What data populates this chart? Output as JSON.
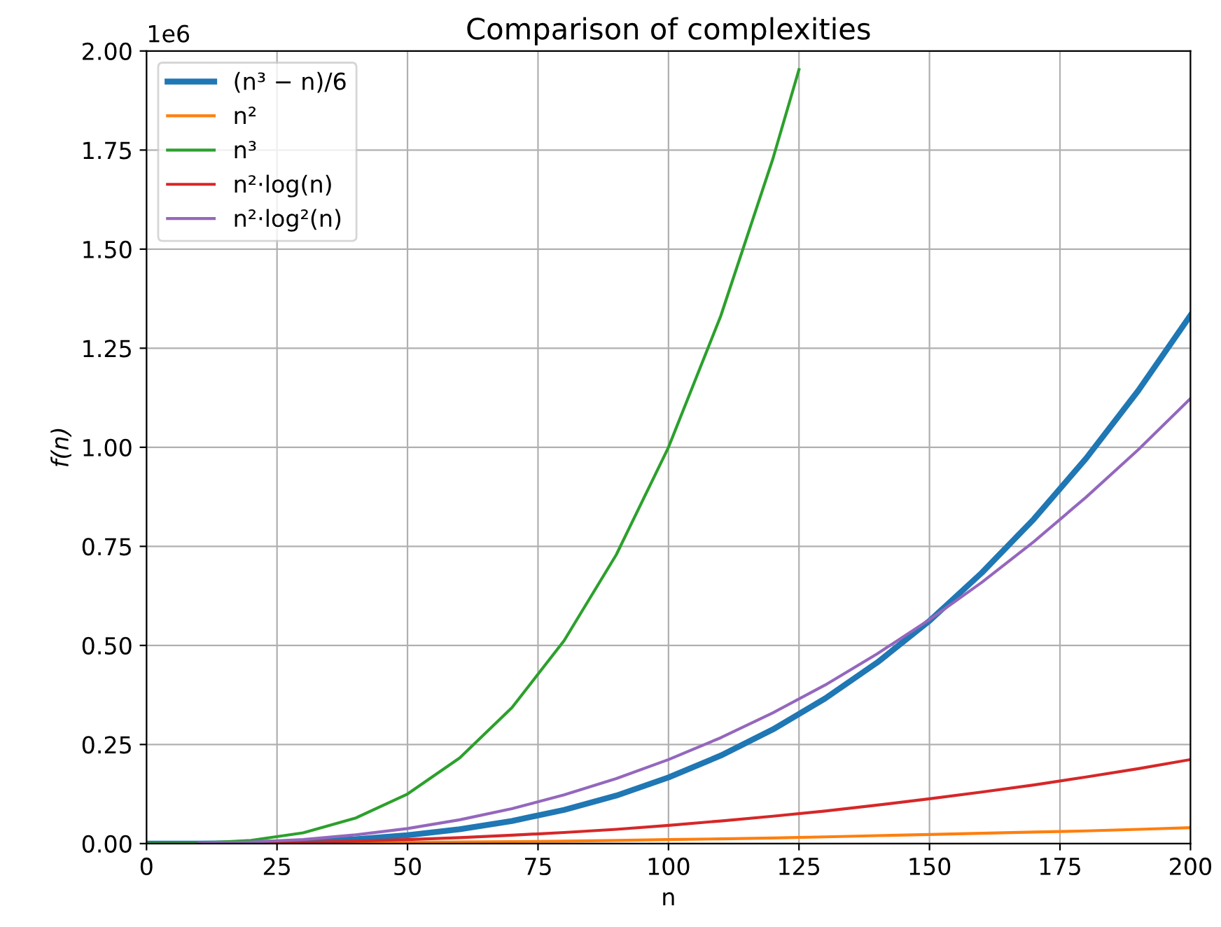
{
  "chart_data": {
    "type": "line",
    "title": "Comparison of complexities",
    "xlabel": "n",
    "ylabel": "f(n)",
    "annotations": [
      "1e6"
    ],
    "x": [
      0,
      10,
      20,
      30,
      40,
      50,
      60,
      70,
      80,
      90,
      100,
      110,
      120,
      130,
      140,
      150,
      160,
      170,
      180,
      190,
      200
    ],
    "series": [
      {
        "name": "(n³ − n)/6",
        "color": "#1f77b4",
        "values": [
          0,
          0.0,
          0.001,
          0.004,
          0.011,
          0.021,
          0.036,
          0.057,
          0.085,
          0.121,
          0.167,
          0.222,
          0.288,
          0.366,
          0.457,
          0.562,
          0.683,
          0.819,
          0.972,
          1.143,
          1.333
        ]
      },
      {
        "name": "n²",
        "color": "#ff7f0e",
        "values": [
          null,
          null,
          null,
          0.001,
          0.002,
          0.003,
          0.004,
          0.005,
          0.006,
          0.008,
          0.01,
          0.012,
          0.014,
          0.017,
          0.02,
          0.023,
          0.026,
          0.029,
          0.032,
          0.036,
          0.04
        ]
      },
      {
        "name": "n³",
        "color": "#2ca02c",
        "x": [
          0,
          10,
          20,
          30,
          40,
          50,
          60,
          70,
          80,
          90,
          100,
          110,
          120,
          125
        ],
        "values": [
          0,
          0.001,
          0.008,
          0.027,
          0.064,
          0.125,
          0.216,
          0.343,
          0.512,
          0.729,
          1.0,
          1.331,
          1.728,
          1.953
        ]
      },
      {
        "name": "n²·log(n)",
        "color": "#d62728",
        "values": [
          null,
          null,
          0.001,
          0.003,
          0.006,
          0.01,
          0.015,
          0.021,
          0.028,
          0.036,
          0.046,
          0.057,
          0.069,
          0.082,
          0.097,
          0.113,
          0.13,
          0.148,
          0.168,
          0.189,
          0.212
        ]
      },
      {
        "name": "n²·log²(n)",
        "color": "#9467bd",
        "values": [
          null,
          0.001,
          0.004,
          0.01,
          0.022,
          0.038,
          0.06,
          0.088,
          0.123,
          0.164,
          0.212,
          0.267,
          0.33,
          0.4,
          0.479,
          0.565,
          0.659,
          0.762,
          0.874,
          0.994,
          1.123
        ]
      }
    ],
    "xlim": [
      0,
      200
    ],
    "xticks": [
      0,
      25,
      50,
      75,
      100,
      125,
      150,
      175,
      200
    ],
    "ylim": [
      0,
      2
    ],
    "yticks": [
      {
        "value": 0,
        "label": "0.00"
      },
      {
        "value": 0.25,
        "label": "0.25"
      },
      {
        "value": 0.5,
        "label": "0.50"
      },
      {
        "value": 0.75,
        "label": "0.75"
      },
      {
        "value": 1,
        "label": "1.00"
      },
      {
        "value": 1.25,
        "label": "1.25"
      },
      {
        "value": 1.5,
        "label": "1.50"
      },
      {
        "value": 1.75,
        "label": "1.75"
      },
      {
        "value": 2,
        "label": "2.00"
      }
    ],
    "grid": true,
    "legend": "top left"
  }
}
